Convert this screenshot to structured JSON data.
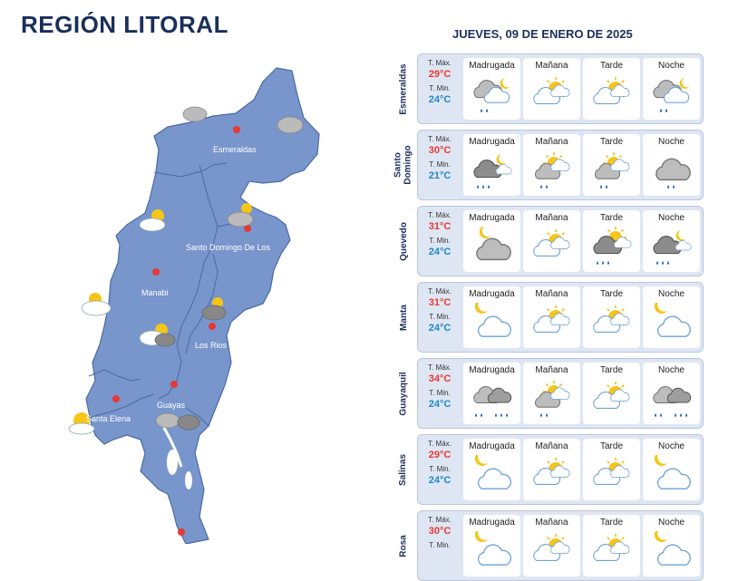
{
  "region_title": "REGIÓN LITORAL",
  "date": "JUEVES, 09 DE ENERO DE 2025",
  "labels": {
    "t_max": "T. Máx.",
    "t_min": "T. Min."
  },
  "periods": [
    "Madrugada",
    "Mañana",
    "Tarde",
    "Noche"
  ],
  "colors": {
    "map_fill": "#7896cc",
    "map_border": "#4a6aa3",
    "card_bg": "#dfe6f3",
    "max": "#e53935",
    "min": "#1e88c8",
    "title": "#1a2f5a",
    "pin": "#e53935"
  },
  "map_labels": [
    "Esmeraldas",
    "Santo Domingo De Los",
    "Manabi",
    "Los Rios",
    "Guayas",
    "Santa Elena"
  ],
  "cities": [
    {
      "name": "Esmeraldas",
      "max": "29°C",
      "min": "24°C",
      "icons": [
        "cloudy-rain-night-icon",
        "partly-sunny-icon",
        "partly-sunny-icon",
        "cloudy-rain-night-icon"
      ]
    },
    {
      "name": "Santo\nDomingo",
      "max": "30°C",
      "min": "21°C",
      "icons": [
        "dark-cloud-rain-night-icon",
        "cloud-rain-sun-icon",
        "cloud-rain-sun-icon",
        "cloud-rain-icon"
      ]
    },
    {
      "name": "Quevedo",
      "max": "31°C",
      "min": "24°C",
      "icons": [
        "cloudy-night-icon",
        "partly-sunny-icon",
        "dark-cloud-rain-sun-icon",
        "dark-cloud-rain-night-icon"
      ]
    },
    {
      "name": "Manta",
      "max": "31°C",
      "min": "24°C",
      "icons": [
        "moon-cloud-icon",
        "partly-sunny-icon",
        "partly-sunny-icon",
        "moon-cloud-icon"
      ]
    },
    {
      "name": "Guayaquil",
      "max": "34°C",
      "min": "24°C",
      "icons": [
        "cloudy-rain-icon",
        "cloud-rain-sun-icon",
        "partly-sunny-icon",
        "cloudy-rain-icon"
      ]
    },
    {
      "name": "Salinas",
      "max": "29°C",
      "min": "24°C",
      "icons": [
        "moon-cloud-icon",
        "partly-sunny-icon",
        "partly-sunny-icon",
        "moon-cloud-icon"
      ]
    },
    {
      "name": "Rosa",
      "max": "30°C",
      "min": "",
      "icons": [
        "moon-cloud-icon",
        "partly-sunny-icon",
        "partly-sunny-icon",
        "moon-cloud-icon"
      ]
    }
  ]
}
